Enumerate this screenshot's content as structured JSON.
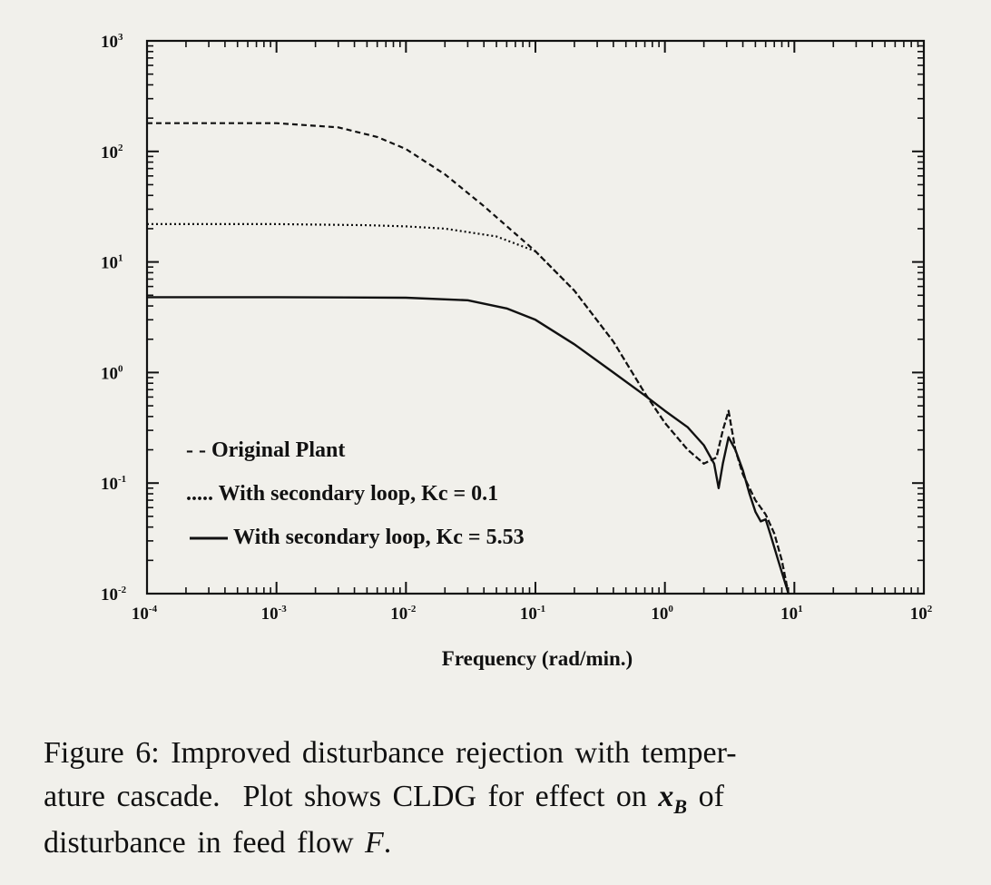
{
  "chart_data": {
    "type": "line",
    "title": "",
    "xlabel": "Frequency (rad/min.)",
    "ylabel": "",
    "x_scale": "log",
    "y_scale": "log",
    "xlim": [
      0.0001,
      100
    ],
    "ylim": [
      0.01,
      1000
    ],
    "x_ticks": [
      {
        "base": "10",
        "exp": "-4",
        "value": 0.0001
      },
      {
        "base": "10",
        "exp": "-3",
        "value": 0.001
      },
      {
        "base": "10",
        "exp": "-2",
        "value": 0.01
      },
      {
        "base": "10",
        "exp": "-1",
        "value": 0.1
      },
      {
        "base": "10",
        "exp": "0",
        "value": 1
      },
      {
        "base": "10",
        "exp": "1",
        "value": 10
      },
      {
        "base": "10",
        "exp": "2",
        "value": 100
      }
    ],
    "y_ticks": [
      {
        "base": "10",
        "exp": "3",
        "value": 1000
      },
      {
        "base": "10",
        "exp": "2",
        "value": 100
      },
      {
        "base": "10",
        "exp": "1",
        "value": 10
      },
      {
        "base": "10",
        "exp": "0",
        "value": 1
      },
      {
        "base": "10",
        "exp": "-1",
        "value": 0.1
      },
      {
        "base": "10",
        "exp": "-2",
        "value": 0.01
      }
    ],
    "grid": false,
    "legend_position": "bottom-left",
    "series": [
      {
        "name": "Original Plant",
        "legend_label": "- - Original Plant",
        "style": "dashed",
        "points": [
          [
            0.0001,
            180
          ],
          [
            0.001,
            180
          ],
          [
            0.003,
            165
          ],
          [
            0.006,
            135
          ],
          [
            0.01,
            105
          ],
          [
            0.02,
            62
          ],
          [
            0.04,
            32
          ],
          [
            0.07,
            18
          ],
          [
            0.1,
            12.5
          ],
          [
            0.2,
            5.5
          ],
          [
            0.4,
            1.9
          ],
          [
            0.7,
            0.65
          ],
          [
            1.0,
            0.35
          ],
          [
            1.5,
            0.2
          ],
          [
            2.0,
            0.15
          ],
          [
            2.5,
            0.17
          ],
          [
            2.8,
            0.3
          ],
          [
            3.1,
            0.45
          ],
          [
            3.5,
            0.2
          ],
          [
            4.0,
            0.12
          ],
          [
            5.0,
            0.07
          ],
          [
            6.0,
            0.052
          ],
          [
            7.0,
            0.035
          ],
          [
            8.0,
            0.02
          ],
          [
            9.0,
            0.01
          ]
        ]
      },
      {
        "name": "With secondary loop, Kc = 0.1",
        "legend_label": "..... With secondary loop, Kc = 0.1",
        "style": "dotted",
        "points": [
          [
            0.0001,
            22
          ],
          [
            0.001,
            22
          ],
          [
            0.005,
            21.5
          ],
          [
            0.01,
            21
          ],
          [
            0.02,
            20
          ],
          [
            0.05,
            17
          ],
          [
            0.1,
            12.5
          ],
          [
            0.2,
            5.5
          ],
          [
            0.4,
            1.9
          ],
          [
            0.7,
            0.65
          ],
          [
            1.0,
            0.35
          ],
          [
            1.5,
            0.2
          ],
          [
            2.0,
            0.15
          ],
          [
            2.5,
            0.17
          ],
          [
            2.8,
            0.3
          ],
          [
            3.1,
            0.45
          ],
          [
            3.5,
            0.2
          ],
          [
            4.0,
            0.12
          ],
          [
            5.0,
            0.07
          ],
          [
            6.0,
            0.052
          ],
          [
            7.0,
            0.035
          ],
          [
            8.0,
            0.02
          ],
          [
            9.0,
            0.01
          ]
        ]
      },
      {
        "name": "With secondary loop, Kc = 5.53",
        "legend_label": "With secondary loop, Kc = 5.53",
        "style": "solid",
        "points": [
          [
            0.0001,
            4.8
          ],
          [
            0.001,
            4.8
          ],
          [
            0.01,
            4.75
          ],
          [
            0.03,
            4.5
          ],
          [
            0.06,
            3.8
          ],
          [
            0.1,
            3.0
          ],
          [
            0.2,
            1.8
          ],
          [
            0.4,
            1.0
          ],
          [
            0.7,
            0.62
          ],
          [
            1.0,
            0.45
          ],
          [
            1.5,
            0.32
          ],
          [
            2.0,
            0.22
          ],
          [
            2.4,
            0.15
          ],
          [
            2.6,
            0.09
          ],
          [
            2.8,
            0.15
          ],
          [
            3.1,
            0.26
          ],
          [
            3.5,
            0.2
          ],
          [
            4.0,
            0.13
          ],
          [
            4.5,
            0.08
          ],
          [
            5.0,
            0.055
          ],
          [
            5.5,
            0.045
          ],
          [
            6.0,
            0.047
          ],
          [
            6.5,
            0.035
          ],
          [
            7.5,
            0.02
          ],
          [
            9.0,
            0.01
          ]
        ]
      }
    ]
  },
  "caption": {
    "line1": "Figure 6: Improved disturbance rejection with temper-",
    "line2_part1": "ature cascade.  Plot shows CLDG for effect on ",
    "line2_var": "x",
    "line2_sub": "B",
    "line2_part2": " of",
    "line3_part1": "disturbance in feed flow ",
    "line3_var": "F",
    "line3_part2": "."
  }
}
